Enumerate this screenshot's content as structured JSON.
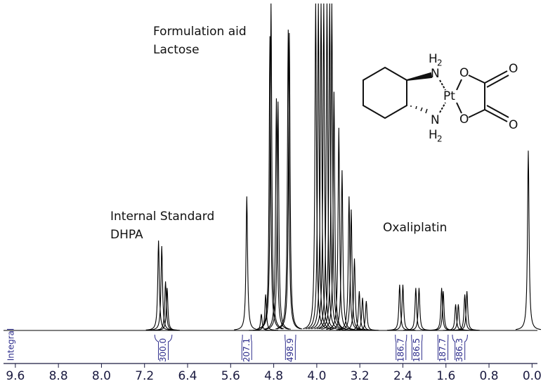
{
  "chart_data": {
    "type": "nmr",
    "annotations": [
      "Formulation aid",
      "Lactose",
      "Internal Standard",
      "DHPA",
      "Oxaliplatin"
    ],
    "xlim": [
      9.82,
      -0.1
    ],
    "xticks": [
      9.6,
      8.8,
      {
        "value": 8.0,
        "label": "8.0"
      },
      7.2,
      6.4,
      5.6,
      4.8,
      {
        "value": 4.0,
        "label": "4.0"
      },
      3.2,
      2.4,
      1.6,
      0.8,
      {
        "value": 0.0,
        "label": "0.0"
      }
    ],
    "ylim": [
      0,
      100
    ],
    "peaks": {
      "x": [
        6.94,
        6.88,
        6.81,
        6.78,
        5.3,
        5.03,
        4.95,
        4.87,
        4.85,
        4.75,
        4.72,
        4.53,
        4.51,
        4.02,
        3.97,
        3.92,
        3.87,
        3.81,
        3.76,
        3.72,
        3.68,
        3.59,
        3.53,
        3.4,
        3.36,
        3.3,
        3.21,
        3.15,
        3.08,
        2.46,
        2.4,
        2.16,
        2.1,
        1.68,
        1.65,
        1.42,
        1.37,
        1.25,
        1.21,
        0.07
      ],
      "values": [
        27.5,
        25.8,
        15,
        13,
        41,
        5,
        11,
        90,
        100,
        71,
        70,
        92,
        91,
        100,
        100,
        100,
        100,
        100,
        100,
        100,
        73,
        62,
        49,
        41,
        37,
        22,
        12,
        10,
        9,
        14,
        14,
        13,
        13,
        13,
        12,
        8,
        8,
        11,
        12,
        55
      ]
    },
    "integral_label": "Integral",
    "integrals": {
      "ranges": [
        [
          7.01,
          6.69
        ],
        [
          5.38,
          5.22
        ],
        [
          4.59,
          4.39
        ],
        [
          2.54,
          2.33
        ],
        [
          2.24,
          2.04
        ],
        [
          1.75,
          1.56
        ],
        [
          1.48,
          1.2
        ]
      ],
      "values": [
        300.0,
        207.1,
        498.9,
        186.7,
        186.5,
        187.7,
        386.3
      ],
      "value_labels": [
        "300.0",
        "207.1",
        "498.9",
        "186.7",
        "186.5",
        "187.7",
        "386.3"
      ]
    },
    "line_color": "#000000",
    "integral_color": "#2e2e8c",
    "structure": {
      "atoms": [
        "H",
        "2",
        "N",
        "Pt",
        "N",
        "H",
        "2",
        "O",
        "O",
        "O",
        "O"
      ]
    }
  }
}
